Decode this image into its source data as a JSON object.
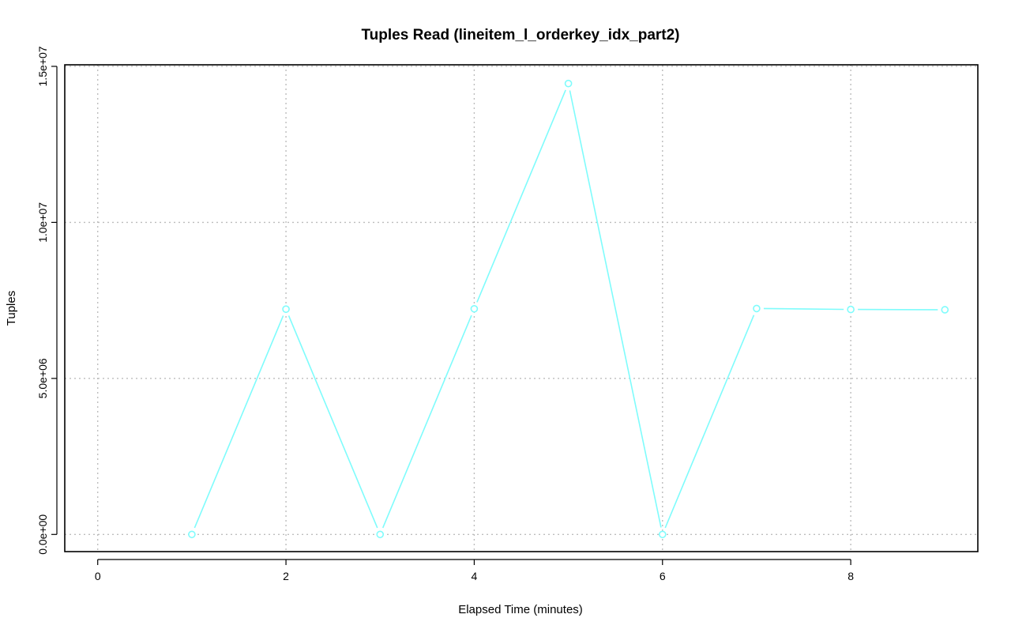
{
  "chart_data": {
    "type": "line",
    "title": "Tuples Read (lineitem_l_orderkey_idx_part2)",
    "xlabel": "Elapsed Time (minutes)",
    "ylabel": "Tuples",
    "xlim": [
      -0.35,
      9.35
    ],
    "ylim": [
      -550000,
      15050000
    ],
    "x_ticks": [
      0,
      2,
      4,
      6,
      8
    ],
    "x_tick_labels": [
      "0",
      "2",
      "4",
      "6",
      "8"
    ],
    "y_ticks": [
      0,
      5000000,
      10000000,
      15000000
    ],
    "y_tick_labels": [
      "0.0e+00",
      "5.0e+06",
      "1.0e+07",
      "1.5e+07"
    ],
    "grid": true,
    "line_color": "#7ffcfc",
    "series": [
      {
        "x": [
          1,
          2,
          3,
          4,
          5,
          6,
          7,
          8,
          9
        ],
        "values": [
          0,
          7220000,
          0,
          7230000,
          14450000,
          0,
          7240000,
          7210000,
          7200000
        ]
      }
    ]
  }
}
